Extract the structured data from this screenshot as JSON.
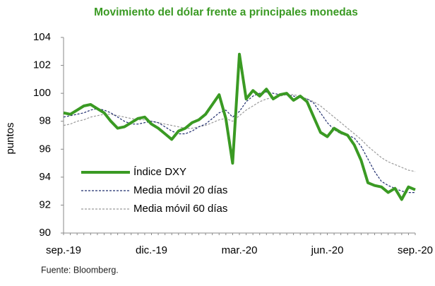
{
  "chart_data": {
    "type": "line",
    "title": "Movimiento del dólar frente a principales monedas",
    "y_label": "puntos",
    "source": "Fuente: Bloomberg.",
    "categories": [
      "sep.-19",
      null,
      null,
      null,
      null,
      null,
      null,
      null,
      null,
      null,
      null,
      null,
      null,
      "dic.-19",
      null,
      null,
      null,
      null,
      null,
      null,
      null,
      null,
      null,
      null,
      null,
      null,
      "mar.-20",
      null,
      null,
      null,
      null,
      null,
      null,
      null,
      null,
      null,
      null,
      null,
      null,
      "jun.-20",
      null,
      null,
      null,
      null,
      null,
      null,
      null,
      null,
      null,
      null,
      null,
      null,
      "sep.-20"
    ],
    "series": [
      {
        "name": "Índice DXY",
        "color": "#3a9a23",
        "style": "solid",
        "values": [
          98.6,
          98.5,
          98.8,
          99.1,
          99.2,
          98.9,
          98.6,
          98.0,
          97.5,
          97.6,
          97.9,
          98.2,
          98.3,
          97.8,
          97.5,
          97.1,
          96.7,
          97.3,
          97.5,
          97.9,
          98.1,
          98.5,
          99.2,
          99.9,
          98.2,
          95.0,
          102.8,
          99.6,
          100.2,
          99.8,
          100.3,
          99.6,
          99.9,
          100.0,
          99.5,
          99.8,
          99.4,
          98.3,
          97.2,
          96.9,
          97.5,
          97.2,
          97.0,
          96.3,
          95.2,
          93.6,
          93.4,
          93.3,
          92.9,
          93.2,
          92.4,
          93.3,
          93.1
        ]
      },
      {
        "name": "Media móvil 20 días",
        "color": "#1f2d6e",
        "style": "dashed",
        "values": [
          98.3,
          98.4,
          98.5,
          98.6,
          98.8,
          98.9,
          98.8,
          98.6,
          98.3,
          98.0,
          97.8,
          97.8,
          97.9,
          98.0,
          97.9,
          97.6,
          97.3,
          97.1,
          97.1,
          97.3,
          97.6,
          97.8,
          98.2,
          98.6,
          98.8,
          98.3,
          98.7,
          99.4,
          99.8,
          100.0,
          100.1,
          100.0,
          99.9,
          99.9,
          99.8,
          99.7,
          99.6,
          99.3,
          98.6,
          97.9,
          97.4,
          97.1,
          97.0,
          96.8,
          96.2,
          95.3,
          94.4,
          93.7,
          93.4,
          93.2,
          93.0,
          92.9,
          92.9
        ]
      },
      {
        "name": "Media móvil 60 días",
        "color": "#9a9a9a",
        "style": "dashed",
        "values": [
          97.7,
          97.8,
          98.0,
          98.1,
          98.3,
          98.4,
          98.5,
          98.5,
          98.4,
          98.3,
          98.2,
          98.1,
          98.1,
          98.0,
          97.9,
          97.8,
          97.7,
          97.6,
          97.5,
          97.5,
          97.6,
          97.7,
          97.9,
          98.1,
          98.2,
          98.0,
          98.4,
          98.8,
          99.1,
          99.4,
          99.6,
          99.7,
          99.8,
          99.9,
          99.9,
          99.8,
          99.6,
          99.4,
          99.1,
          98.7,
          98.3,
          97.9,
          97.5,
          97.1,
          96.7,
          96.2,
          95.8,
          95.4,
          95.1,
          94.9,
          94.7,
          94.5,
          94.4
        ]
      }
    ],
    "ylim": [
      90,
      104
    ],
    "yticks": [
      90,
      92,
      94,
      96,
      98,
      100,
      102,
      104
    ],
    "grid": false,
    "legend": "lower left"
  }
}
